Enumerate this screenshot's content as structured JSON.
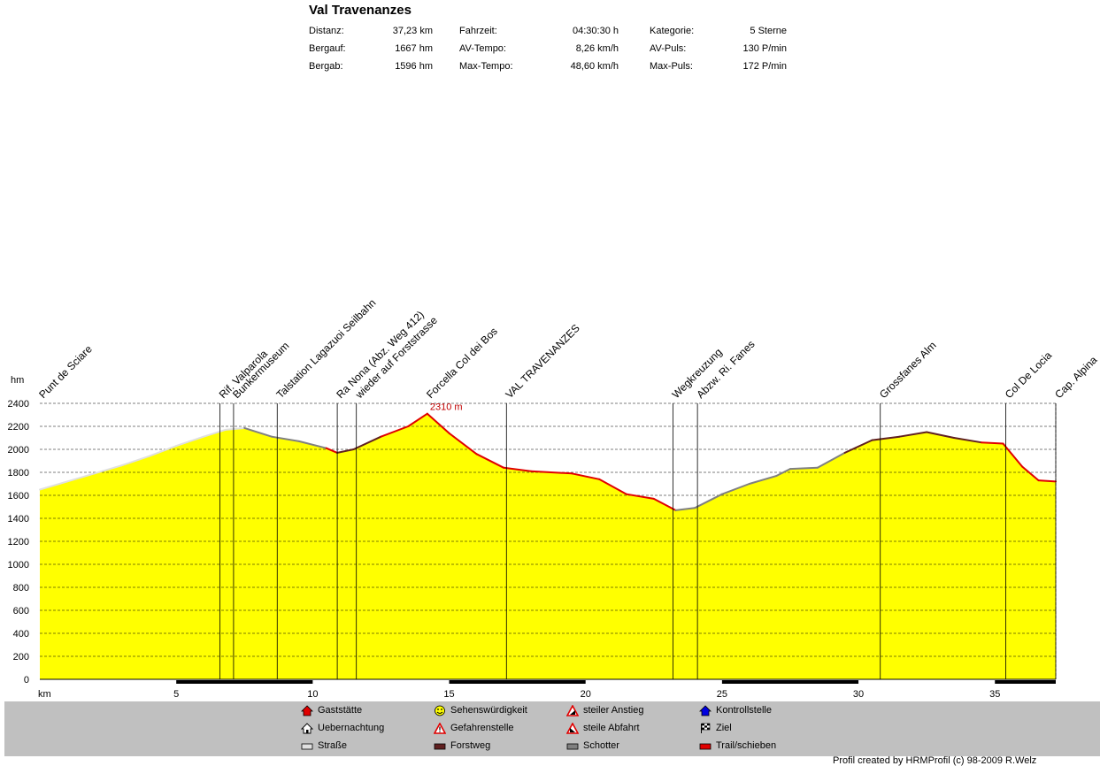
{
  "title": "Val Travenanzes",
  "stats": [
    {
      "label": "Distanz:",
      "value": "37,23 km"
    },
    {
      "label": "Bergauf:",
      "value": "1667 hm"
    },
    {
      "label": "Bergab:",
      "value": "1596 hm"
    },
    {
      "label": "Fahrzeit:",
      "value": "04:30:30 h"
    },
    {
      "label": "AV-Tempo:",
      "value": "8,26 km/h"
    },
    {
      "label": "Max-Tempo:",
      "value": "48,60 km/h"
    },
    {
      "label": "Kategorie:",
      "value": "5 Sterne"
    },
    {
      "label": "AV-Puls:",
      "value": "130 P/min"
    },
    {
      "label": "Max-Puls:",
      "value": "172 P/min"
    }
  ],
  "legend": [
    {
      "label": "Gaststätte",
      "icon": "house-red-icon"
    },
    {
      "label": "Uebernachtung",
      "icon": "house-outline-icon"
    },
    {
      "label": "Straße",
      "icon": "road-swatch-icon"
    },
    {
      "label": "Sehenswürdigkeit",
      "icon": "smiley-icon"
    },
    {
      "label": "Gefahrenstelle",
      "icon": "warning-icon"
    },
    {
      "label": "Forstweg",
      "icon": "forest-road-swatch-icon"
    },
    {
      "label": "steiler Anstieg",
      "icon": "steep-ascent-icon"
    },
    {
      "label": "steile Abfahrt",
      "icon": "steep-descent-icon"
    },
    {
      "label": "Schotter",
      "icon": "gravel-swatch-icon"
    },
    {
      "label": "Kontrollstelle",
      "icon": "checkpoint-icon"
    },
    {
      "label": "Ziel",
      "icon": "finish-flag-icon"
    },
    {
      "label": "Trail/schieben",
      "icon": "trail-swatch-icon"
    }
  ],
  "colors": {
    "fill": "#ffff00",
    "road": "#e0e0e0",
    "gravel": "#808080",
    "forestroad": "#602020",
    "trail": "#e00000",
    "legend_bg": "#c0c0c0"
  },
  "footer": "Profil created by HRMProfil (c) 98-2009 R.Welz",
  "chart_data": {
    "type": "area",
    "xlabel": "km",
    "ylabel": "hm",
    "xlim": [
      0,
      37.23
    ],
    "ylim": [
      0,
      2400
    ],
    "x_ticks": [
      5,
      10,
      15,
      20,
      25,
      30,
      35
    ],
    "y_ticks": [
      0,
      200,
      400,
      600,
      800,
      1000,
      1200,
      1400,
      1600,
      1800,
      2000,
      2200,
      2400
    ],
    "grid": true,
    "max_label": "2310 m",
    "max_point": {
      "x": 14.2,
      "y": 2310
    },
    "profile": [
      {
        "x": 0.0,
        "y": 1650,
        "s": "road"
      },
      {
        "x": 1.0,
        "y": 1720,
        "s": "road"
      },
      {
        "x": 2.0,
        "y": 1790,
        "s": "road"
      },
      {
        "x": 3.0,
        "y": 1860,
        "s": "road"
      },
      {
        "x": 4.0,
        "y": 1940,
        "s": "road"
      },
      {
        "x": 5.0,
        "y": 2030,
        "s": "road"
      },
      {
        "x": 6.0,
        "y": 2110,
        "s": "road"
      },
      {
        "x": 6.8,
        "y": 2170,
        "s": "road"
      },
      {
        "x": 7.5,
        "y": 2185,
        "s": "road"
      },
      {
        "x": 8.5,
        "y": 2110,
        "s": "gravel"
      },
      {
        "x": 9.5,
        "y": 2070,
        "s": "gravel"
      },
      {
        "x": 10.5,
        "y": 2010,
        "s": "gravel"
      },
      {
        "x": 10.9,
        "y": 1970,
        "s": "trail"
      },
      {
        "x": 11.5,
        "y": 2000,
        "s": "forestroad"
      },
      {
        "x": 12.5,
        "y": 2110,
        "s": "forestroad"
      },
      {
        "x": 13.5,
        "y": 2200,
        "s": "trail"
      },
      {
        "x": 14.2,
        "y": 2310,
        "s": "trail"
      },
      {
        "x": 15.0,
        "y": 2140,
        "s": "trail"
      },
      {
        "x": 16.0,
        "y": 1960,
        "s": "trail"
      },
      {
        "x": 17.0,
        "y": 1840,
        "s": "trail"
      },
      {
        "x": 18.0,
        "y": 1810,
        "s": "trail"
      },
      {
        "x": 19.5,
        "y": 1790,
        "s": "trail"
      },
      {
        "x": 20.5,
        "y": 1740,
        "s": "trail"
      },
      {
        "x": 21.5,
        "y": 1610,
        "s": "trail"
      },
      {
        "x": 22.5,
        "y": 1570,
        "s": "trail"
      },
      {
        "x": 23.3,
        "y": 1470,
        "s": "trail"
      },
      {
        "x": 24.0,
        "y": 1490,
        "s": "gravel"
      },
      {
        "x": 25.0,
        "y": 1610,
        "s": "gravel"
      },
      {
        "x": 26.0,
        "y": 1700,
        "s": "gravel"
      },
      {
        "x": 27.0,
        "y": 1770,
        "s": "gravel"
      },
      {
        "x": 27.5,
        "y": 1830,
        "s": "gravel"
      },
      {
        "x": 28.5,
        "y": 1840,
        "s": "gravel"
      },
      {
        "x": 29.5,
        "y": 1970,
        "s": "gravel"
      },
      {
        "x": 30.5,
        "y": 2080,
        "s": "forestroad"
      },
      {
        "x": 31.5,
        "y": 2110,
        "s": "forestroad"
      },
      {
        "x": 32.5,
        "y": 2150,
        "s": "forestroad"
      },
      {
        "x": 33.5,
        "y": 2100,
        "s": "forestroad"
      },
      {
        "x": 34.5,
        "y": 2060,
        "s": "forestroad"
      },
      {
        "x": 35.3,
        "y": 2050,
        "s": "trail"
      },
      {
        "x": 36.0,
        "y": 1850,
        "s": "trail"
      },
      {
        "x": 36.6,
        "y": 1730,
        "s": "trail"
      },
      {
        "x": 37.23,
        "y": 1720,
        "s": "trail"
      }
    ],
    "waypoints": [
      {
        "label": "Punt de Sciare",
        "x": 0.0,
        "line": false
      },
      {
        "label": "Rif. Valparola",
        "x": 6.6,
        "line": true
      },
      {
        "label": "Bunkermuseum",
        "x": 7.1,
        "line": true
      },
      {
        "label": "Talstation Lagazuoi Seilbahn",
        "x": 8.7,
        "line": true
      },
      {
        "label": "Ra Nona (Abz. Weg 412)",
        "x": 10.9,
        "line": true
      },
      {
        "label": "wieder auf Forststrasse",
        "x": 11.6,
        "line": true
      },
      {
        "label": "Forcella Col dei Bos",
        "x": 14.2,
        "line": false
      },
      {
        "label": "VAL TRAVENANZES",
        "x": 17.1,
        "line": true
      },
      {
        "label": "Wegkreuzung",
        "x": 23.2,
        "line": true
      },
      {
        "label": "Abzw. Ri. Fanes",
        "x": 24.1,
        "line": true
      },
      {
        "label": "Grossfanes Alm",
        "x": 30.8,
        "line": true
      },
      {
        "label": "Col De Locia",
        "x": 35.4,
        "line": true
      },
      {
        "label": "Cap. Alpina",
        "x": 37.23,
        "line": true
      }
    ]
  }
}
